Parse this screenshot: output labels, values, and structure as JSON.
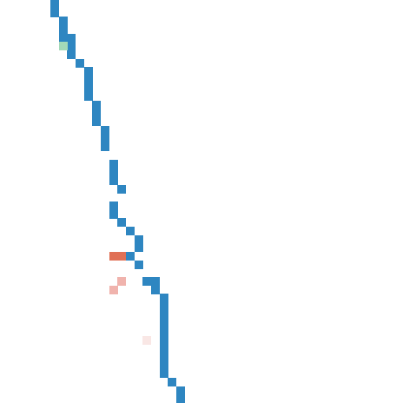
{
  "grid": {
    "cols": 48,
    "rows": 48
  },
  "colors": {
    "background": "#ffffff",
    "trail": "#2e86c1",
    "start": "#a3d9b8",
    "player": "#e07055",
    "fade_strong": "#f0b3ad",
    "fade_weak": "#f9e7e5"
  },
  "trail_cells": [
    [
      6,
      0
    ],
    [
      6,
      1
    ],
    [
      7,
      2
    ],
    [
      7,
      3
    ],
    [
      7,
      4
    ],
    [
      8,
      4
    ],
    [
      8,
      5
    ],
    [
      8,
      6
    ],
    [
      9,
      7
    ],
    [
      10,
      8
    ],
    [
      10,
      9
    ],
    [
      10,
      10
    ],
    [
      10,
      11
    ],
    [
      11,
      12
    ],
    [
      11,
      13
    ],
    [
      11,
      14
    ],
    [
      12,
      15
    ],
    [
      12,
      16
    ],
    [
      12,
      17
    ],
    [
      13,
      19
    ],
    [
      13,
      20
    ],
    [
      13,
      21
    ],
    [
      14,
      22
    ],
    [
      13,
      24
    ],
    [
      13,
      25
    ],
    [
      14,
      26
    ],
    [
      15,
      27
    ],
    [
      16,
      28
    ],
    [
      16,
      29
    ],
    [
      15,
      30
    ],
    [
      16,
      31
    ],
    [
      17,
      33
    ],
    [
      18,
      33
    ],
    [
      18,
      34
    ],
    [
      19,
      35
    ],
    [
      19,
      36
    ],
    [
      19,
      37
    ],
    [
      19,
      38
    ],
    [
      19,
      39
    ],
    [
      19,
      40
    ],
    [
      19,
      41
    ],
    [
      19,
      42
    ],
    [
      19,
      43
    ],
    [
      19,
      44
    ],
    [
      20,
      45
    ],
    [
      21,
      46
    ],
    [
      21,
      47
    ]
  ],
  "start_cells": [
    [
      7,
      5
    ]
  ],
  "player_cells": [
    [
      13,
      30
    ],
    [
      14,
      30
    ]
  ],
  "fade_strong_cells": [
    [
      14,
      33
    ],
    [
      13,
      34
    ]
  ],
  "fade_weak_cells": [
    [
      17,
      40
    ]
  ]
}
